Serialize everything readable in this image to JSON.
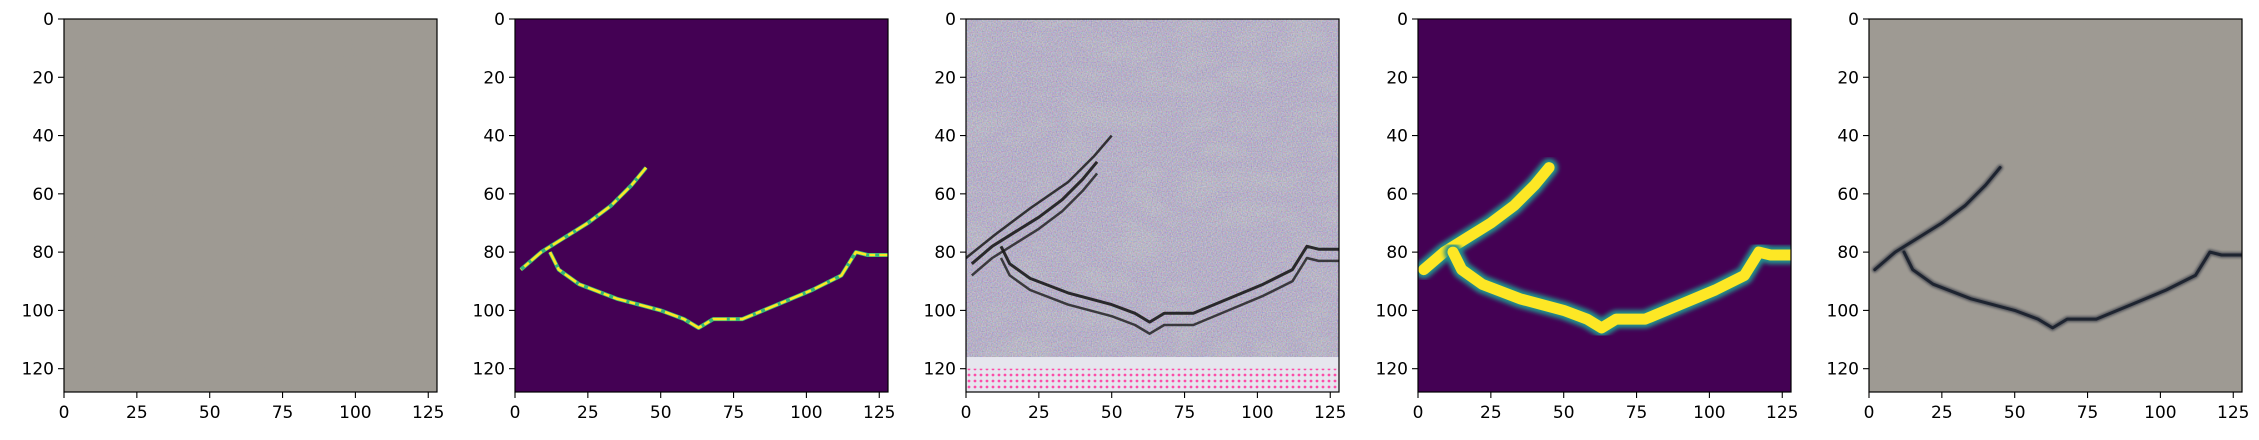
{
  "chart_data": [
    {
      "type": "heatmap",
      "content": "grey concrete texture photo without crack",
      "xlim": [
        0,
        128
      ],
      "ylim": [
        128,
        0
      ],
      "xticks": [
        0,
        25,
        50,
        75,
        100,
        125
      ],
      "yticks": [
        0,
        20,
        40,
        60,
        80,
        100,
        120
      ],
      "colors": {
        "base": "#9e9a93",
        "speck_dark": "#5a5650",
        "speck_light": "#d4d0c8"
      }
    },
    {
      "type": "heatmap",
      "content": "thin binary crack mask",
      "colormap": "viridis",
      "xlim": [
        0,
        128
      ],
      "ylim": [
        128,
        0
      ],
      "xticks": [
        0,
        25,
        50,
        75,
        100,
        125
      ],
      "yticks": [
        0,
        20,
        40,
        60,
        80,
        100,
        120
      ],
      "colors": {
        "background": "#440154",
        "crack": "#fde725",
        "edge": "#35b779"
      }
    },
    {
      "type": "heatmap",
      "content": "noisy generated crack texture",
      "xlim": [
        0,
        128
      ],
      "ylim": [
        128,
        0
      ],
      "xticks": [
        0,
        25,
        50,
        75,
        100,
        125
      ],
      "yticks": [
        0,
        20,
        40,
        60,
        80,
        100,
        120
      ],
      "colors": {
        "base": "#a9a3bb",
        "dark": "#6d5f86",
        "light": "#e6e6ee",
        "crack": "#1a1a1a",
        "artifact": "#ff3ca0"
      }
    },
    {
      "type": "heatmap",
      "content": "thick crack mask",
      "colormap": "viridis",
      "xlim": [
        0,
        128
      ],
      "ylim": [
        128,
        0
      ],
      "xticks": [
        0,
        25,
        50,
        75,
        100,
        125
      ],
      "yticks": [
        0,
        20,
        40,
        60,
        80,
        100,
        120
      ],
      "colors": {
        "background": "#440154",
        "crack": "#fde725",
        "edge": "#21918c"
      }
    },
    {
      "type": "heatmap",
      "content": "concrete texture photo with dark crack",
      "xlim": [
        0,
        128
      ],
      "ylim": [
        128,
        0
      ],
      "xticks": [
        0,
        25,
        50,
        75,
        100,
        125
      ],
      "yticks": [
        0,
        20,
        40,
        60,
        80,
        100,
        120
      ],
      "colors": {
        "base": "#9e9a93",
        "speck_dark": "#5a5650",
        "speck_light": "#d4d0c8",
        "crack": "#1e2430"
      }
    }
  ],
  "crack_path": {
    "upper_branch": [
      [
        45,
        51
      ],
      [
        40,
        57
      ],
      [
        33,
        64
      ],
      [
        25,
        70
      ],
      [
        17,
        75
      ],
      [
        9,
        80
      ],
      [
        2,
        86
      ]
    ],
    "main_branch": [
      [
        12,
        80
      ],
      [
        15,
        86
      ],
      [
        22,
        91
      ],
      [
        35,
        96
      ],
      [
        50,
        100
      ],
      [
        58,
        103
      ],
      [
        63,
        106
      ],
      [
        68,
        103
      ],
      [
        78,
        103
      ],
      [
        90,
        98
      ],
      [
        102,
        93
      ],
      [
        112,
        88
      ],
      [
        117,
        80
      ],
      [
        121,
        81
      ],
      [
        128,
        81
      ]
    ]
  }
}
